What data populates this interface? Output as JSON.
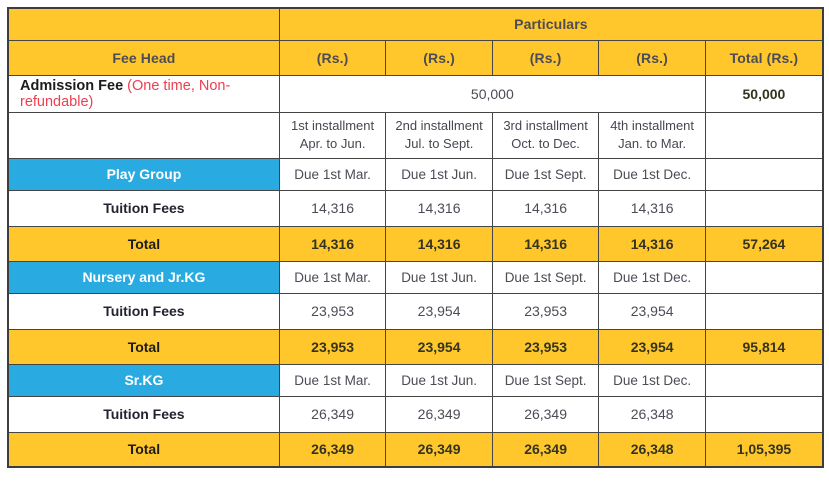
{
  "colors": {
    "header_yellow": "#FFC72C",
    "group_blue": "#29ABE2",
    "note_red": "#EF3E4F",
    "border": "#454545"
  },
  "header": {
    "particulars": "Particulars",
    "fee_head": "Fee Head",
    "rs": [
      "(Rs.)",
      "(Rs.)",
      "(Rs.)",
      "(Rs.)"
    ],
    "total": "Total (Rs.)"
  },
  "admission": {
    "label": "Admission Fee",
    "note": "(One time, Non-refundable)",
    "amount": "50,000",
    "total": "50,000"
  },
  "installments": [
    {
      "name": "1st installment",
      "period": "Apr. to Jun."
    },
    {
      "name": "2nd installment",
      "period": "Jul. to Sept."
    },
    {
      "name": "3rd installment",
      "period": "Oct. to Dec."
    },
    {
      "name": "4th installment",
      "period": "Jan. to Mar."
    }
  ],
  "groups": [
    {
      "name": "Play Group",
      "due": [
        "Due 1st Mar.",
        "Due 1st Jun.",
        "Due 1st Sept.",
        "Due 1st Dec."
      ],
      "tuition_label": "Tuition Fees",
      "tuition": [
        "14,316",
        "14,316",
        "14,316",
        "14,316"
      ],
      "total_label": "Total",
      "totals": [
        "14,316",
        "14,316",
        "14,316",
        "14,316"
      ],
      "grand_total": "57,264"
    },
    {
      "name": "Nursery and Jr.KG",
      "due": [
        "Due 1st Mar.",
        "Due 1st Jun.",
        "Due 1st Sept.",
        "Due 1st Dec."
      ],
      "tuition_label": "Tuition Fees",
      "tuition": [
        "23,953",
        "23,954",
        "23,953",
        "23,954"
      ],
      "total_label": "Total",
      "totals": [
        "23,953",
        "23,954",
        "23,953",
        "23,954"
      ],
      "grand_total": "95,814"
    },
    {
      "name": "Sr.KG",
      "due": [
        "Due 1st Mar.",
        "Due 1st Jun.",
        "Due 1st Sept.",
        "Due 1st Dec."
      ],
      "tuition_label": "Tuition Fees",
      "tuition": [
        "26,349",
        "26,349",
        "26,349",
        "26,348"
      ],
      "total_label": "Total",
      "totals": [
        "26,349",
        "26,349",
        "26,349",
        "26,348"
      ],
      "grand_total": "1,05,395"
    }
  ]
}
